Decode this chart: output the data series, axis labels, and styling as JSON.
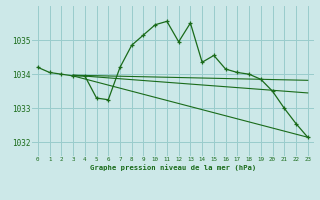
{
  "title": "Graphe pression niveau de la mer (hPa)",
  "bg_color": "#cce8e8",
  "grid_color": "#99cccc",
  "line_color": "#1a6b1a",
  "xlim": [
    -0.5,
    23.5
  ],
  "ylim": [
    1031.6,
    1036.0
  ],
  "yticks": [
    1032,
    1033,
    1034,
    1035
  ],
  "xticks": [
    0,
    1,
    2,
    3,
    4,
    5,
    6,
    7,
    8,
    9,
    10,
    11,
    12,
    13,
    14,
    15,
    16,
    17,
    18,
    19,
    20,
    21,
    22,
    23
  ],
  "series1_x": [
    0,
    1,
    2,
    3,
    4,
    5,
    6,
    7,
    8,
    9,
    10,
    11,
    12,
    13,
    14,
    15,
    16,
    17,
    18,
    19,
    20,
    21,
    22,
    23
  ],
  "series1_y": [
    1034.2,
    1034.05,
    1034.0,
    1033.95,
    1033.95,
    1033.3,
    1033.25,
    1034.2,
    1034.85,
    1035.15,
    1035.45,
    1035.55,
    1034.95,
    1035.5,
    1034.35,
    1034.55,
    1034.15,
    1034.05,
    1034.0,
    1033.85,
    1033.5,
    1033.0,
    1032.55,
    1032.15
  ],
  "series2_x": [
    3,
    23
  ],
  "series2_y": [
    1033.97,
    1033.82
  ],
  "series3_x": [
    3,
    23
  ],
  "series3_y": [
    1033.97,
    1033.45
  ],
  "series4_x": [
    3,
    23
  ],
  "series4_y": [
    1033.95,
    1032.15
  ]
}
